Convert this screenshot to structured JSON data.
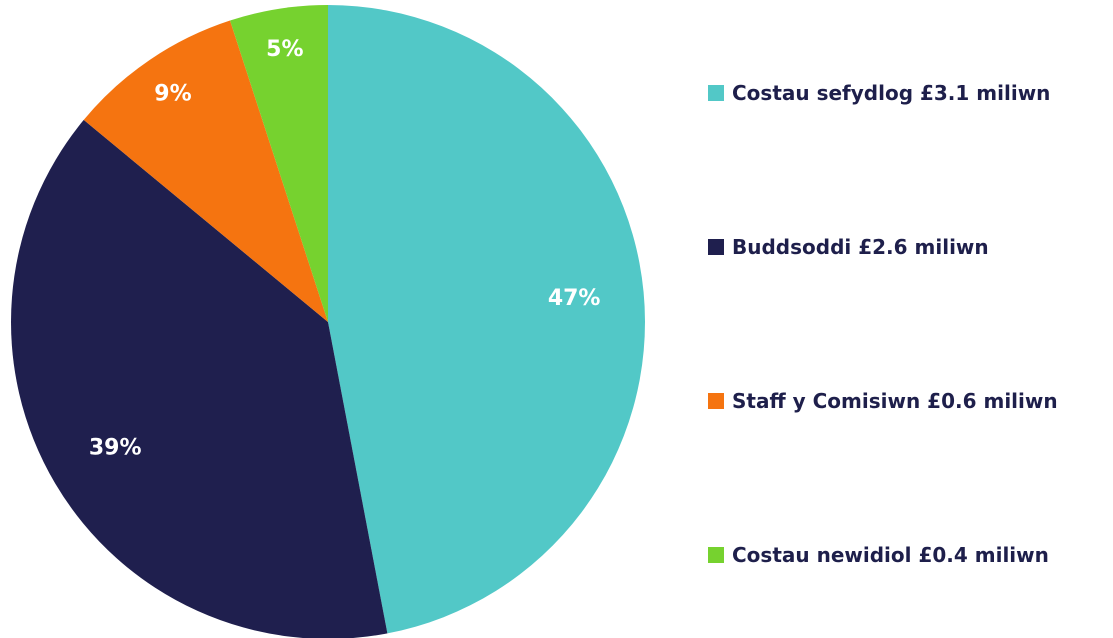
{
  "chart_data": {
    "type": "pie",
    "start_angle_deg": 0,
    "direction": "clockwise",
    "slices": [
      {
        "label": "Costau sefydlog £3.1 miliwn",
        "value": 47,
        "display": "47%",
        "color": "#52c8c7"
      },
      {
        "label": "Buddsoddi £2.6 miliwn",
        "value": 39,
        "display": "39%",
        "color": "#1f1f4e"
      },
      {
        "label": "Staff y Comisiwn £0.6 miliwn",
        "value": 9,
        "display": "9%",
        "color": "#f57410"
      },
      {
        "label": "Costau newidiol £0.4 miliwn",
        "value": 5,
        "display": "5%",
        "color": "#76d22f"
      }
    ],
    "legend_position": "right"
  }
}
